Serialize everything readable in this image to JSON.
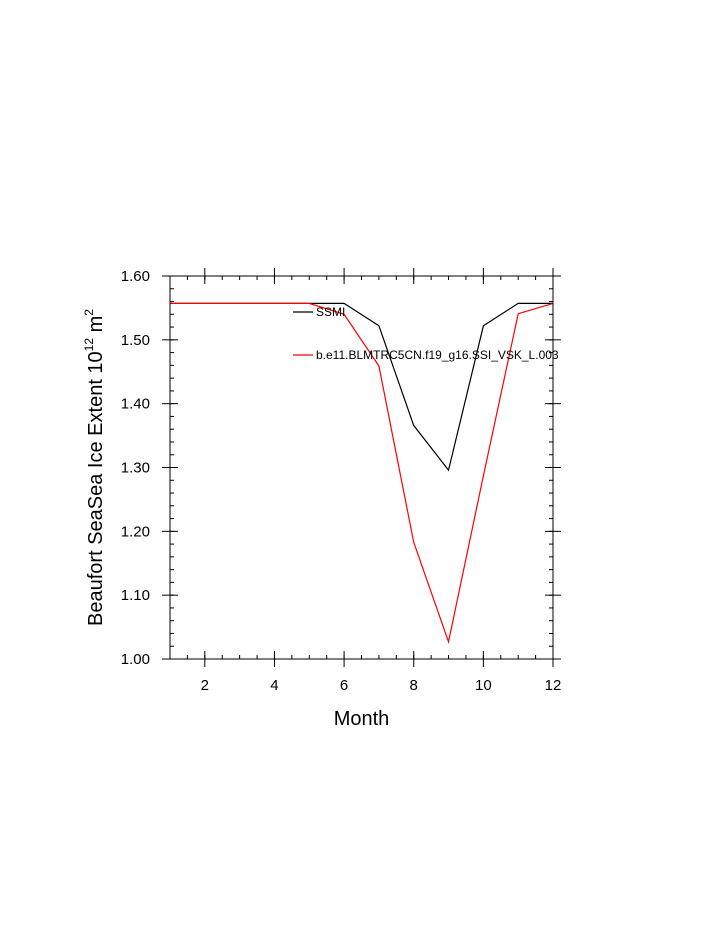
{
  "chart_data": {
    "type": "line",
    "xlabel": "Month",
    "ylabel": {
      "text": "Beaufort SeaSea Ice Extent 10",
      "superscript": "12",
      "unit": " m",
      "unit_superscript": "2"
    },
    "xlim": [
      1,
      12
    ],
    "ylim": [
      1.0,
      1.6
    ],
    "x_ticks": [
      2,
      4,
      6,
      8,
      10,
      12
    ],
    "x_tick_labels": [
      "2",
      "4",
      "6",
      "8",
      "10",
      "12"
    ],
    "y_ticks": [
      1.0,
      1.1,
      1.2,
      1.3,
      1.4,
      1.5,
      1.6
    ],
    "y_tick_labels": [
      "1.00",
      "1.10",
      "1.20",
      "1.30",
      "1.40",
      "1.50",
      "1.60"
    ],
    "grid": false,
    "legend_position": "top-right",
    "x": [
      1,
      2,
      3,
      4,
      5,
      6,
      7,
      8,
      9,
      10,
      11,
      12
    ],
    "series": [
      {
        "name": "SSMI",
        "color": "#000000",
        "values": [
          1.557,
          1.557,
          1.557,
          1.557,
          1.557,
          1.557,
          1.522,
          1.366,
          1.296,
          1.522,
          1.557,
          1.557
        ]
      },
      {
        "name": "b.e11.BLMTRC5CN.f19_g16.SSI_VSK_L.003",
        "color": "#ff0000",
        "values": [
          1.557,
          1.557,
          1.557,
          1.557,
          1.557,
          1.54,
          1.459,
          1.183,
          1.027,
          1.287,
          1.541,
          1.557
        ]
      }
    ]
  }
}
